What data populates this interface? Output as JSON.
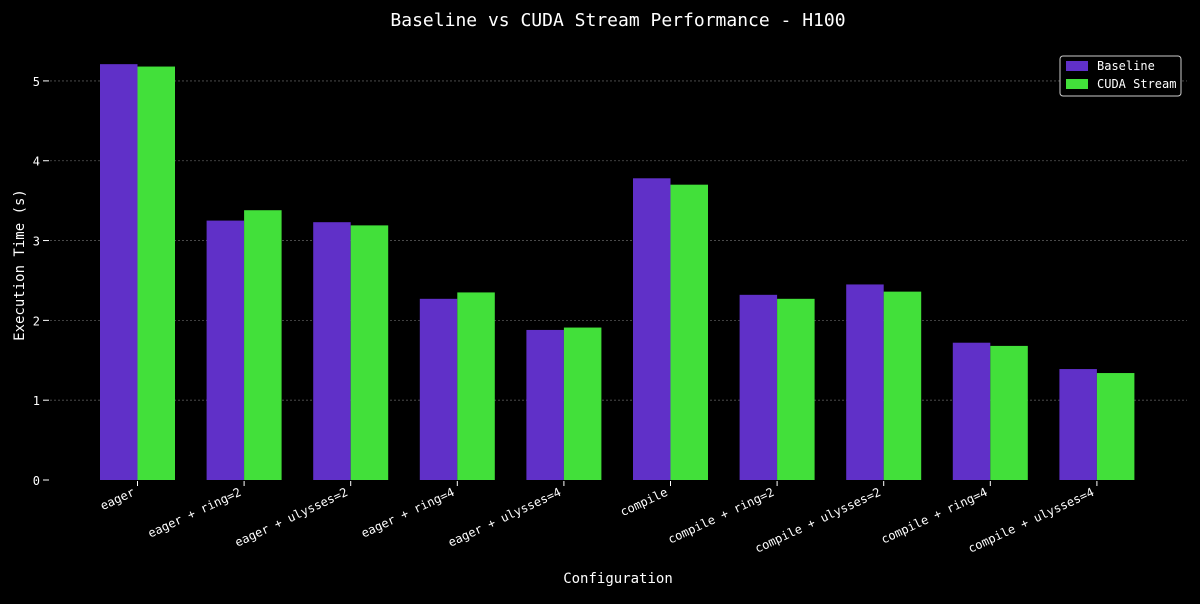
{
  "chart_data": {
    "type": "bar",
    "title": "Baseline vs CUDA Stream Performance - H100",
    "xlabel": "Configuration",
    "ylabel": "Execution Time (s)",
    "ylim": [
      0,
      5.45
    ],
    "yticks": [
      0,
      1,
      2,
      3,
      4,
      5
    ],
    "grid": true,
    "legend_position": "top-right",
    "categories": [
      "eager",
      "eager + ring=2",
      "eager + ulysses=2",
      "eager + ring=4",
      "eager + ulysses=4",
      "compile",
      "compile + ring=2",
      "compile + ulysses=2",
      "compile + ring=4",
      "compile + ulysses=4"
    ],
    "series": [
      {
        "name": "Baseline",
        "color": "#6030c8",
        "values": [
          5.21,
          3.25,
          3.23,
          2.27,
          1.88,
          3.78,
          2.32,
          2.45,
          1.72,
          1.39
        ]
      },
      {
        "name": "CUDA Stream",
        "color": "#42e03a",
        "values": [
          5.18,
          3.38,
          3.19,
          2.35,
          1.91,
          3.7,
          2.27,
          2.36,
          1.68,
          1.34
        ]
      }
    ]
  },
  "colors": {
    "background": "#000000",
    "text": "#ffffff",
    "grid": "#555555"
  }
}
